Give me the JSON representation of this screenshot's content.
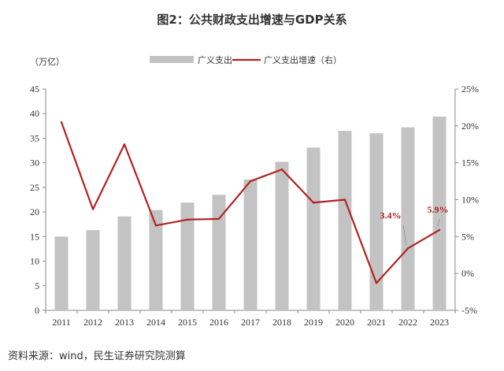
{
  "title": "图2：公共财政支出增速与GDP关系",
  "source": "资料来源：wind，民生证券研究院测算",
  "chart_data": {
    "type": "bar+line",
    "categories": [
      "2011",
      "2012",
      "2013",
      "2014",
      "2015",
      "2016",
      "2017",
      "2018",
      "2019",
      "2020",
      "2021",
      "2022",
      "2023"
    ],
    "left_unit": "（万亿）",
    "y_left": {
      "min": 0,
      "max": 45,
      "step": 5
    },
    "y_right": {
      "min": -5,
      "max": 25,
      "step": 5,
      "suffix": "%"
    },
    "series": [
      {
        "name": "广义支出",
        "type": "bar",
        "axis": "left",
        "color": "#c3c3c3",
        "values": [
          15.0,
          16.3,
          19.1,
          20.4,
          21.9,
          23.5,
          26.6,
          30.2,
          33.1,
          36.5,
          36.0,
          37.2,
          39.4
        ]
      },
      {
        "name": "广义支出增速（右）",
        "type": "line",
        "axis": "right",
        "color": "#b22222",
        "values": [
          20.5,
          8.7,
          17.5,
          6.5,
          7.3,
          7.4,
          12.5,
          14.1,
          9.6,
          10.0,
          -1.3,
          3.4,
          5.9
        ]
      }
    ],
    "annotations": [
      {
        "text": "3.4%",
        "category": "2022",
        "color": "#b22222"
      },
      {
        "text": "5.9%",
        "category": "2023",
        "color": "#b22222"
      }
    ],
    "legend": "top-center",
    "grid": false
  }
}
